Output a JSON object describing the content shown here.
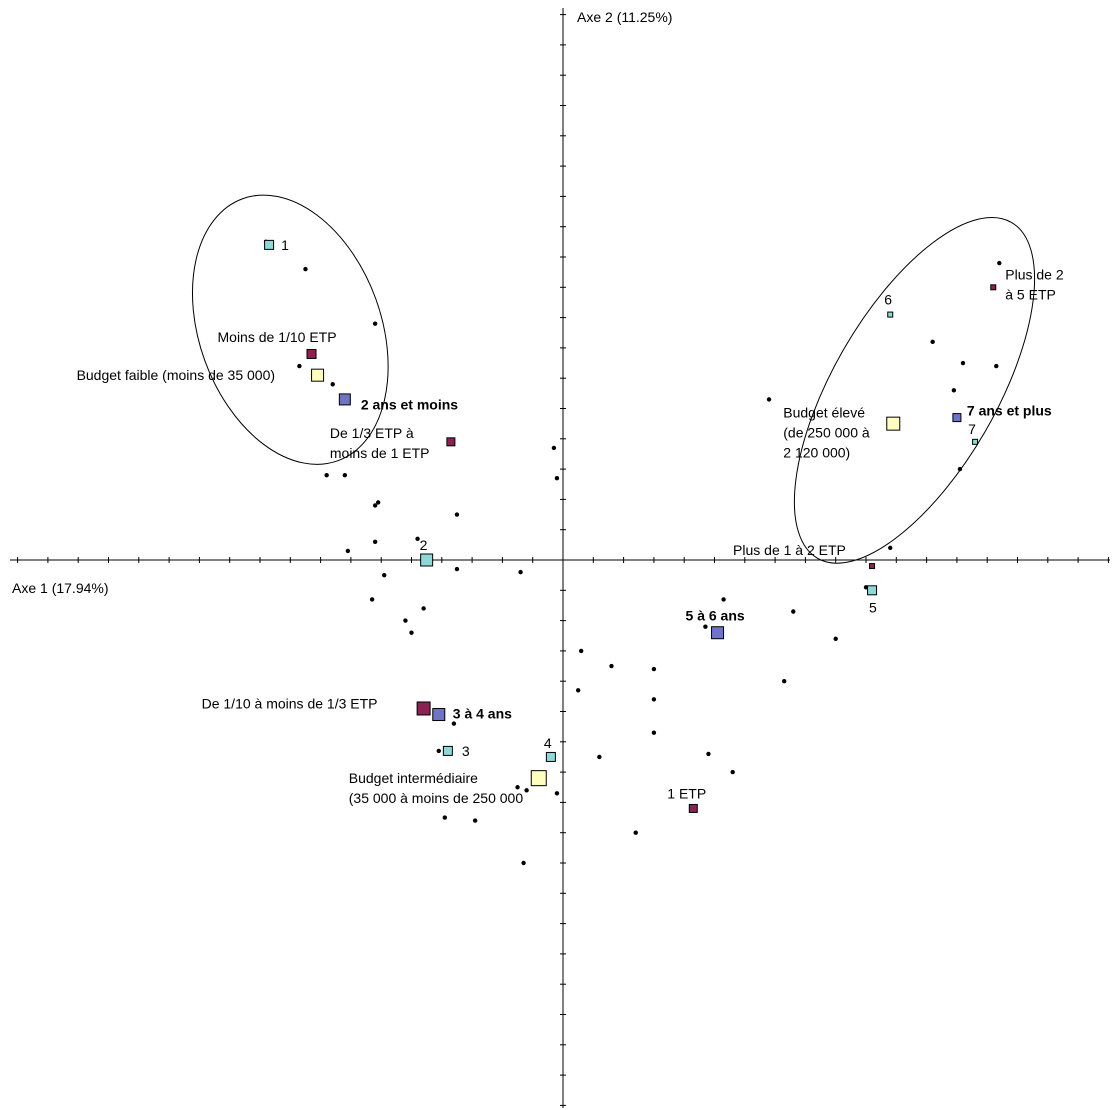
{
  "chart_data": {
    "type": "scatter",
    "xlabel": "Axe 1 (17.94%)",
    "ylabel": "Axe 2 (11.25%)",
    "xlim": [
      -1.8,
      1.8
    ],
    "ylim": [
      -1.8,
      1.8
    ],
    "grid": false,
    "tick_step": 0.1,
    "colors": {
      "seniority": "#6f74c4",
      "etp": "#8b2252",
      "budget": "#ffffbf",
      "number": "#8fd8d8",
      "marker_stroke": "#000000",
      "individual": "#000000"
    },
    "individuals": [
      [
        -0.98,
        1.05
      ],
      [
        -0.85,
        0.96
      ],
      [
        -0.62,
        0.78
      ],
      [
        -0.87,
        0.64
      ],
      [
        -0.76,
        0.58
      ],
      [
        -0.78,
        0.28
      ],
      [
        -0.72,
        0.28
      ],
      [
        -0.62,
        0.18
      ],
      [
        -0.61,
        0.19
      ],
      [
        -0.35,
        0.15
      ],
      [
        -0.62,
        0.06
      ],
      [
        -0.71,
        0.03
      ],
      [
        -0.48,
        0.07
      ],
      [
        -0.59,
        -0.05
      ],
      [
        -0.35,
        -0.03
      ],
      [
        -0.14,
        -0.04
      ],
      [
        -0.63,
        -0.13
      ],
      [
        -0.46,
        -0.16
      ],
      [
        -0.52,
        -0.2
      ],
      [
        -0.5,
        -0.24
      ],
      [
        -0.36,
        -0.54
      ],
      [
        -0.41,
        -0.63
      ],
      [
        -0.15,
        -0.75
      ],
      [
        -0.12,
        -0.76
      ],
      [
        -0.02,
        -0.77
      ],
      [
        -0.39,
        -0.85
      ],
      [
        -0.29,
        -0.86
      ],
      [
        -0.13,
        -1.0
      ],
      [
        -0.03,
        0.37
      ],
      [
        -0.02,
        0.27
      ],
      [
        0.06,
        -0.3
      ],
      [
        0.16,
        -0.35
      ],
      [
        0.3,
        -0.36
      ],
      [
        0.05,
        -0.43
      ],
      [
        0.3,
        -0.46
      ],
      [
        0.3,
        -0.57
      ],
      [
        0.12,
        -0.65
      ],
      [
        0.48,
        -0.64
      ],
      [
        0.56,
        -0.7
      ],
      [
        0.24,
        -0.9
      ],
      [
        0.47,
        -0.22
      ],
      [
        0.53,
        -0.13
      ],
      [
        0.76,
        -0.17
      ],
      [
        0.9,
        -0.26
      ],
      [
        0.73,
        -0.4
      ],
      [
        1.0,
        -0.09
      ],
      [
        1.08,
        0.04
      ],
      [
        0.68,
        0.53
      ],
      [
        1.22,
        0.72
      ],
      [
        1.32,
        0.65
      ],
      [
        1.43,
        0.64
      ],
      [
        1.29,
        0.56
      ],
      [
        1.31,
        0.3
      ],
      [
        1.44,
        0.98
      ]
    ],
    "modalities": [
      {
        "group": "seniority",
        "label": "2 ans et moins",
        "x": -0.72,
        "y": 0.53,
        "size": 11,
        "bold": true
      },
      {
        "group": "seniority",
        "label": "3 à 4 ans",
        "x": -0.41,
        "y": -0.51,
        "size": 12,
        "bold": true
      },
      {
        "group": "seniority",
        "label": "5 à 6 ans",
        "x": 0.51,
        "y": -0.24,
        "size": 12,
        "bold": true
      },
      {
        "group": "seniority",
        "label": "7 ans et plus",
        "x": 1.3,
        "y": 0.47,
        "size": 8,
        "bold": true
      },
      {
        "group": "etp",
        "label": "Moins de 1/10 ETP",
        "x": -0.83,
        "y": 0.68,
        "size": 9,
        "bold": false
      },
      {
        "group": "etp",
        "label": "De 1/3 ETP à\nmoins de 1 ETP",
        "x": -0.37,
        "y": 0.39,
        "size": 8,
        "bold": false
      },
      {
        "group": "etp",
        "label": "De 1/10 à moins de 1/3 ETP",
        "x": -0.46,
        "y": -0.49,
        "size": 13,
        "bold": false
      },
      {
        "group": "etp",
        "label": "1 ETP",
        "x": 0.43,
        "y": -0.82,
        "size": 8,
        "bold": false
      },
      {
        "group": "etp",
        "label": "Plus de 1 à 2 ETP",
        "x": 1.02,
        "y": -0.02,
        "size": 5,
        "bold": false
      },
      {
        "group": "etp",
        "label": "Plus de 2\nà 5 ETP",
        "x": 1.42,
        "y": 0.9,
        "size": 5,
        "bold": false
      },
      {
        "group": "budget",
        "label": "Budget faible (moins de 35 000)",
        "x": -0.81,
        "y": 0.61,
        "size": 12,
        "bold": false
      },
      {
        "group": "budget",
        "label": "Budget intermédiaire\n(35 000 à moins de 250 000",
        "x": -0.08,
        "y": -0.72,
        "size": 15,
        "bold": false
      },
      {
        "group": "budget",
        "label": "Budget élevé\n(de 250 000 à\n2 120 000)",
        "x": 1.09,
        "y": 0.45,
        "size": 13,
        "bold": false
      },
      {
        "group": "number",
        "label": "1",
        "x": -0.97,
        "y": 1.04,
        "size": 9,
        "bold": false
      },
      {
        "group": "number",
        "label": "2",
        "x": -0.45,
        "y": 0.0,
        "size": 12,
        "bold": false
      },
      {
        "group": "number",
        "label": "3",
        "x": -0.38,
        "y": -0.63,
        "size": 9,
        "bold": false
      },
      {
        "group": "number",
        "label": "4",
        "x": -0.04,
        "y": -0.65,
        "size": 9,
        "bold": false
      },
      {
        "group": "number",
        "label": "5",
        "x": 1.02,
        "y": -0.1,
        "size": 9,
        "bold": false
      },
      {
        "group": "number",
        "label": "6",
        "x": 1.08,
        "y": 0.81,
        "size": 5,
        "bold": false
      },
      {
        "group": "number",
        "label": "7",
        "x": 1.36,
        "y": 0.39,
        "size": 5,
        "bold": false
      }
    ],
    "ellipses": [
      {
        "cx": -0.9,
        "cy": 0.76,
        "rx": 0.3,
        "ry": 0.46,
        "rotate": -20
      },
      {
        "cx": 1.16,
        "cy": 0.56,
        "rx": 0.27,
        "ry": 0.64,
        "rotate": 30
      }
    ]
  }
}
